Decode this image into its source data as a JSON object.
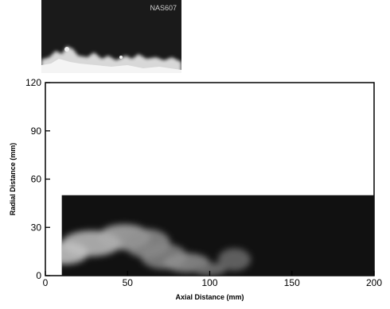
{
  "inset": {
    "label": "NAS607"
  },
  "chart_data": {
    "type": "heatmap",
    "title": "",
    "xlabel": "Axial Distance (mm)",
    "ylabel": "Radial Distance (mm)",
    "xlim": [
      0,
      200
    ],
    "ylim": [
      0,
      120
    ],
    "xticks": [
      0,
      50,
      100,
      150,
      200
    ],
    "yticks": [
      0,
      30,
      60,
      90,
      120
    ],
    "grid": false,
    "field_region": {
      "x": [
        10,
        200
      ],
      "y": [
        0,
        50
      ]
    },
    "intensity_regions": [
      {
        "x": 12,
        "y": 14,
        "rx": 14,
        "ry": 7,
        "level": 0.85
      },
      {
        "x": 28,
        "y": 20,
        "rx": 18,
        "ry": 8,
        "level": 0.8
      },
      {
        "x": 48,
        "y": 24,
        "rx": 16,
        "ry": 8,
        "level": 0.7
      },
      {
        "x": 62,
        "y": 20,
        "rx": 14,
        "ry": 9,
        "level": 0.55
      },
      {
        "x": 72,
        "y": 12,
        "rx": 14,
        "ry": 8,
        "level": 0.5
      },
      {
        "x": 86,
        "y": 8,
        "rx": 14,
        "ry": 6,
        "level": 0.55
      },
      {
        "x": 100,
        "y": 4,
        "rx": 10,
        "ry": 4,
        "level": 0.4
      },
      {
        "x": 115,
        "y": 10,
        "rx": 10,
        "ry": 7,
        "level": 0.35
      }
    ]
  },
  "colors": {
    "field": "#111111",
    "axis": "#000000",
    "background": "#ffffff"
  }
}
